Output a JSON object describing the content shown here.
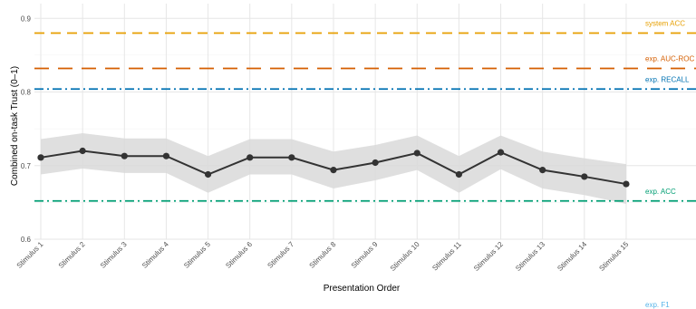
{
  "chart_data": {
    "type": "line",
    "xlabel": "Presentation Order",
    "ylabel": "Combined on-task Trust (0–1)",
    "categories": [
      "Stimulus 1",
      "Stimulus 2",
      "Stimulus 3",
      "Stimulus 4",
      "Stimulus 5",
      "Stimulus 6",
      "Stimulus 7",
      "Stimulus 8",
      "Stimulus 9",
      "Stimulus 10",
      "Stimulus 11",
      "Stimulus 12",
      "Stimulus 13",
      "Stimulus 14",
      "Stimulus 15"
    ],
    "series": [
      {
        "values": [
          0.711,
          0.72,
          0.713,
          0.713,
          0.688,
          0.711,
          0.711,
          0.694,
          0.704,
          0.717,
          0.688,
          0.718,
          0.694,
          0.685,
          0.675
        ],
        "ci_lower": [
          0.688,
          0.696,
          0.69,
          0.69,
          0.663,
          0.688,
          0.688,
          0.669,
          0.68,
          0.694,
          0.663,
          0.695,
          0.669,
          0.66,
          0.648
        ],
        "ci_upper": [
          0.736,
          0.744,
          0.737,
          0.737,
          0.713,
          0.736,
          0.736,
          0.719,
          0.728,
          0.741,
          0.713,
          0.741,
          0.719,
          0.71,
          0.702
        ],
        "color": "#333333"
      }
    ],
    "reference_lines": [
      {
        "label": "system ACC",
        "value": 0.88,
        "color": "#E69F00",
        "dash": "long"
      },
      {
        "label": "exp. AUC-ROC",
        "value": 0.832,
        "color": "#D55E00",
        "dash": "longer"
      },
      {
        "label": "exp. RECALL",
        "value": 0.804,
        "color": "#0072B2",
        "dash": "dashdot"
      },
      {
        "label": "exp. ACC",
        "value": 0.652,
        "color": "#009E73",
        "dash": "dashdot"
      },
      {
        "label": "exp. F1",
        "value": 0.55,
        "color": "#56B4E9",
        "dash": "dashdot"
      }
    ],
    "ylim": [
      0.6,
      0.92
    ],
    "yticks": [
      0.6,
      0.7,
      0.8,
      0.9
    ],
    "ytick_labels": [
      "0.6",
      "0.7",
      "0.8",
      "0.9"
    ],
    "grid": true,
    "ribbon_color": "#d9d9d9"
  }
}
